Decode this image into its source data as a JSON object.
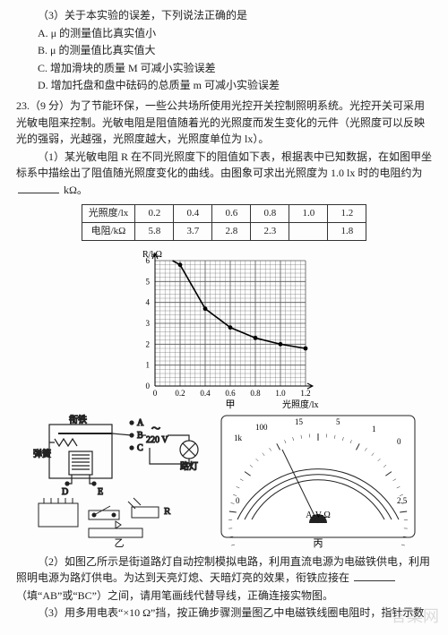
{
  "q22_part3": {
    "stem": "（3）关于本实验的误差，下列说法正确的是",
    "A": "A. μ 的测量值比真实值小",
    "B": "B. μ 的测量值比真实值大",
    "C": "C. 增加滑块的质量 M 可减小实验误差",
    "D": "D. 增加托盘和盘中砝码的总质量 m 可减小实验误差"
  },
  "q23": {
    "head": "23.（9 分）为了节能环保，一些公共场所使用光控开关控制照明系统。光控开关可采用光敏电阻来控制。光敏电阻是阻值随着光的光照度而发生变化的元件（光照度可以反映光的强弱，光越强，光照度越大，光照度单位为 lx）。",
    "p1a": "（1）某光敏电阻 R 在不同光照度下的阻值如下表，根据表中已知数据，在如图甲坐标系中描绘出了阻值随光照度变化的曲线。由图象可求出光照度为 1.0 lx 时的电阻约为",
    "p1b": " kΩ。",
    "table": {
      "row1": [
        "光照度/lx",
        "0.2",
        "0.4",
        "0.6",
        "0.8",
        "1.0",
        "1.2"
      ],
      "row2": [
        "电阻/kΩ",
        "5.8",
        "3.7",
        "2.8",
        "2.3",
        "",
        "1.8"
      ]
    },
    "graph": {
      "ylabel": "R/kΩ",
      "xlabel": "光照度/lx",
      "xticks": [
        "0",
        "0.2",
        "0.4",
        "0.6",
        "0.8",
        "1.0",
        "1.2"
      ],
      "yticks": [
        "0",
        "1",
        "2",
        "3",
        "4",
        "5",
        "6"
      ],
      "points_lx": [
        0.2,
        0.4,
        0.6,
        0.8,
        1.0,
        1.2
      ],
      "points_R": [
        5.8,
        3.7,
        2.8,
        2.3,
        2.0,
        1.8
      ],
      "caption": "甲"
    },
    "circuit": {
      "labels": {
        "A": "A",
        "B": "B",
        "C": "C",
        "D": "D",
        "E": "E",
        "R": "R",
        "V": "～\n220 V",
        "lamp": "路灯",
        "spring": "弹簧",
        "iron": "衔铁",
        "mag": "电磁铁"
      },
      "caption": "乙"
    },
    "meter": {
      "AV": "A-V-Ω",
      "caption": "丙"
    },
    "p2": "（2）如图乙所示是街道路灯自动控制模拟电路，利用直流电源为电磁铁供电，利用照明电源为路灯供电。为达到天亮灯熄、天暗灯亮的效果，衔铁应接在",
    "p2b": "（填“AB”或“BC”）之间，请用笔画线代替导线，正确连接实物图。",
    "p3": "（3）用多用电表“×10 Ω”挡，按正确步骤测量图乙中电磁铁线圈电阻时，指针示数"
  }
}
